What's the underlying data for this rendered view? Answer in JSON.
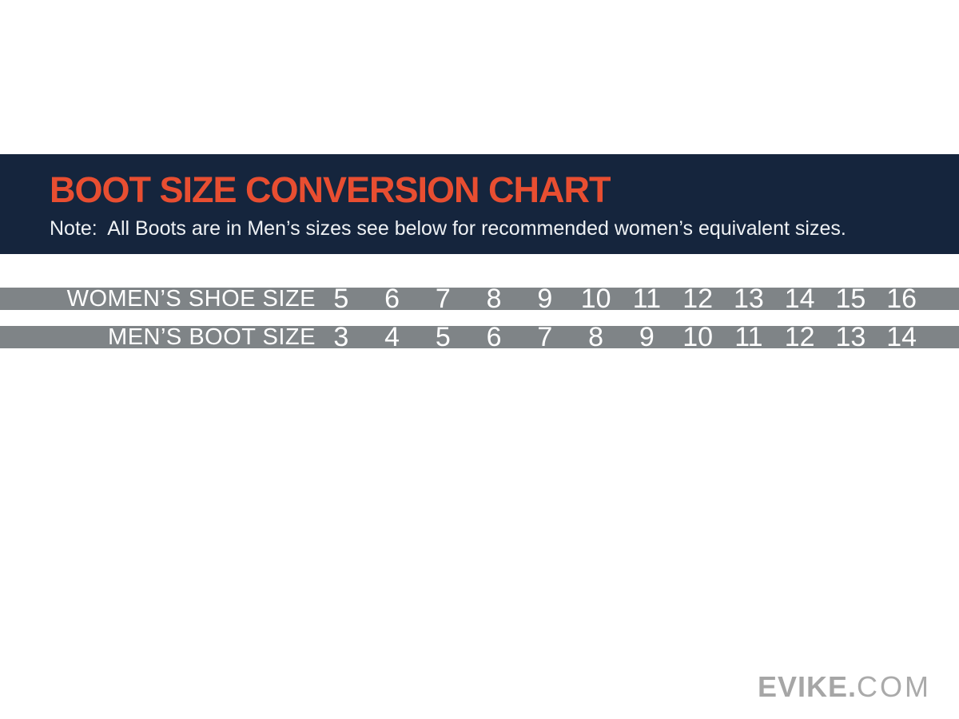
{
  "header": {
    "title": "BOOT SIZE CONVERSION CHART",
    "note": "Note:  All Boots are in Men’s sizes see below for recommended women’s equivalent sizes.",
    "background_color": "#15253d",
    "title_color": "#e84e31",
    "note_color": "#eef1f4"
  },
  "chart_data": {
    "type": "table",
    "title": "BOOT SIZE CONVERSION CHART",
    "note": "Note:  All Boots are in Men’s sizes see below for recommended women’s equivalent sizes.",
    "bar_color": "#7f8487",
    "text_color": "#ffffff",
    "rows": [
      {
        "label": "WOMEN’S SHOE SIZE",
        "values": [
          "5",
          "6",
          "7",
          "8",
          "9",
          "10",
          "11",
          "12",
          "13",
          "14",
          "15",
          "16"
        ]
      },
      {
        "label": "MEN’S BOOT SIZE",
        "values": [
          "3",
          "4",
          "5",
          "6",
          "7",
          "8",
          "9",
          "10",
          "11",
          "12",
          "13",
          "14"
        ]
      }
    ]
  },
  "footer": {
    "brand_bold": "EVIKE.",
    "brand_light": "COM",
    "brand_color": "#a6a6a6"
  }
}
